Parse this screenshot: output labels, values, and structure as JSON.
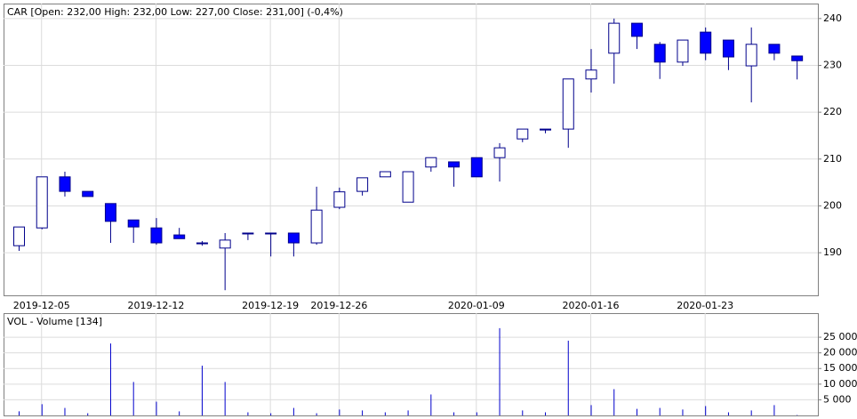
{
  "chart_data": [
    {
      "type": "candlestick",
      "title": "CAR [Open: 232,00  High: 232,00  Low: 227,00  Close: 231,00] (-0,4%)",
      "categories": [
        null,
        "2019-12-05",
        null,
        null,
        null,
        null,
        "2019-12-12",
        null,
        null,
        null,
        null,
        "2019-12-19",
        null,
        null,
        "2019-12-26",
        null,
        null,
        null,
        null,
        null,
        "2020-01-09",
        null,
        null,
        null,
        null,
        "2020-01-16",
        null,
        null,
        null,
        null,
        "2020-01-23",
        null,
        null,
        null,
        null
      ],
      "open": [
        191.5,
        195.3,
        206.2,
        203.1,
        200.5,
        197,
        195.3,
        193.8,
        192.1,
        191,
        194.2,
        194.2,
        194.2,
        192.1,
        199.7,
        203.1,
        206.2,
        200.8,
        208.3,
        209.4,
        210.3,
        210.3,
        214.3,
        216.4,
        216.4,
        227.1,
        232.6,
        239,
        234.5,
        230.7,
        237.1,
        235.4,
        229.9,
        234.5,
        232
      ],
      "high": [
        195.5,
        206.2,
        207.3,
        203.1,
        200.5,
        197,
        197.4,
        195.3,
        192.5,
        194.2,
        194.2,
        194.2,
        194.2,
        204.1,
        203.9,
        206,
        207.3,
        207.3,
        210.3,
        209.4,
        210.3,
        213.4,
        216.4,
        216.4,
        227.1,
        233.5,
        240,
        239,
        235,
        235.4,
        238.1,
        235.4,
        238.1,
        234.5,
        232
      ],
      "low": [
        190.4,
        195,
        202,
        202,
        192.1,
        192.1,
        191.7,
        193,
        191.5,
        182,
        192.7,
        189.2,
        189.2,
        191.7,
        199.3,
        202.2,
        206.2,
        200.8,
        207.3,
        204.1,
        206.2,
        205.2,
        213.6,
        215.5,
        212.4,
        224.2,
        226.1,
        233.5,
        227.1,
        229.9,
        231.1,
        229,
        222.1,
        231.1,
        227
      ],
      "close": [
        195.5,
        206.2,
        203.1,
        202,
        196.7,
        195.5,
        192.1,
        193,
        192,
        192.7,
        194.2,
        194.1,
        192.1,
        199.1,
        203,
        206,
        207.3,
        207.3,
        210.3,
        208.3,
        206.2,
        212.4,
        216.4,
        216.2,
        227.1,
        229,
        239,
        236.2,
        230.7,
        235.4,
        232.6,
        231.8,
        234.5,
        232.6,
        231
      ],
      "up_color": "#ffffff",
      "down_color": "#0000ff",
      "line_color": "#00008b",
      "ylim": [
        180.9,
        243.2
      ],
      "yticks": [
        190,
        200,
        210,
        220,
        230,
        240
      ],
      "grid": true
    },
    {
      "type": "bar",
      "title": "VOL - Volume [134]",
      "values": [
        1300,
        3600,
        2400,
        700,
        23000,
        10700,
        4400,
        1300,
        15900,
        10700,
        1000,
        700,
        2400,
        700,
        1900,
        1600,
        1000,
        1600,
        6700,
        1000,
        1000,
        27900,
        1600,
        1000,
        23900,
        3300,
        8400,
        2100,
        2400,
        1900,
        3000,
        1000,
        1600,
        3300,
        134
      ],
      "color": "#0000cc",
      "ylim": [
        0,
        32700
      ],
      "yticks": [
        {
          "value": 5000,
          "label": "5 000"
        },
        {
          "value": 10000,
          "label": "10 000"
        },
        {
          "value": 15000,
          "label": "15 000"
        },
        {
          "value": 20000,
          "label": "20 000"
        },
        {
          "value": 25000,
          "label": "25 000"
        }
      ],
      "grid": true
    }
  ]
}
